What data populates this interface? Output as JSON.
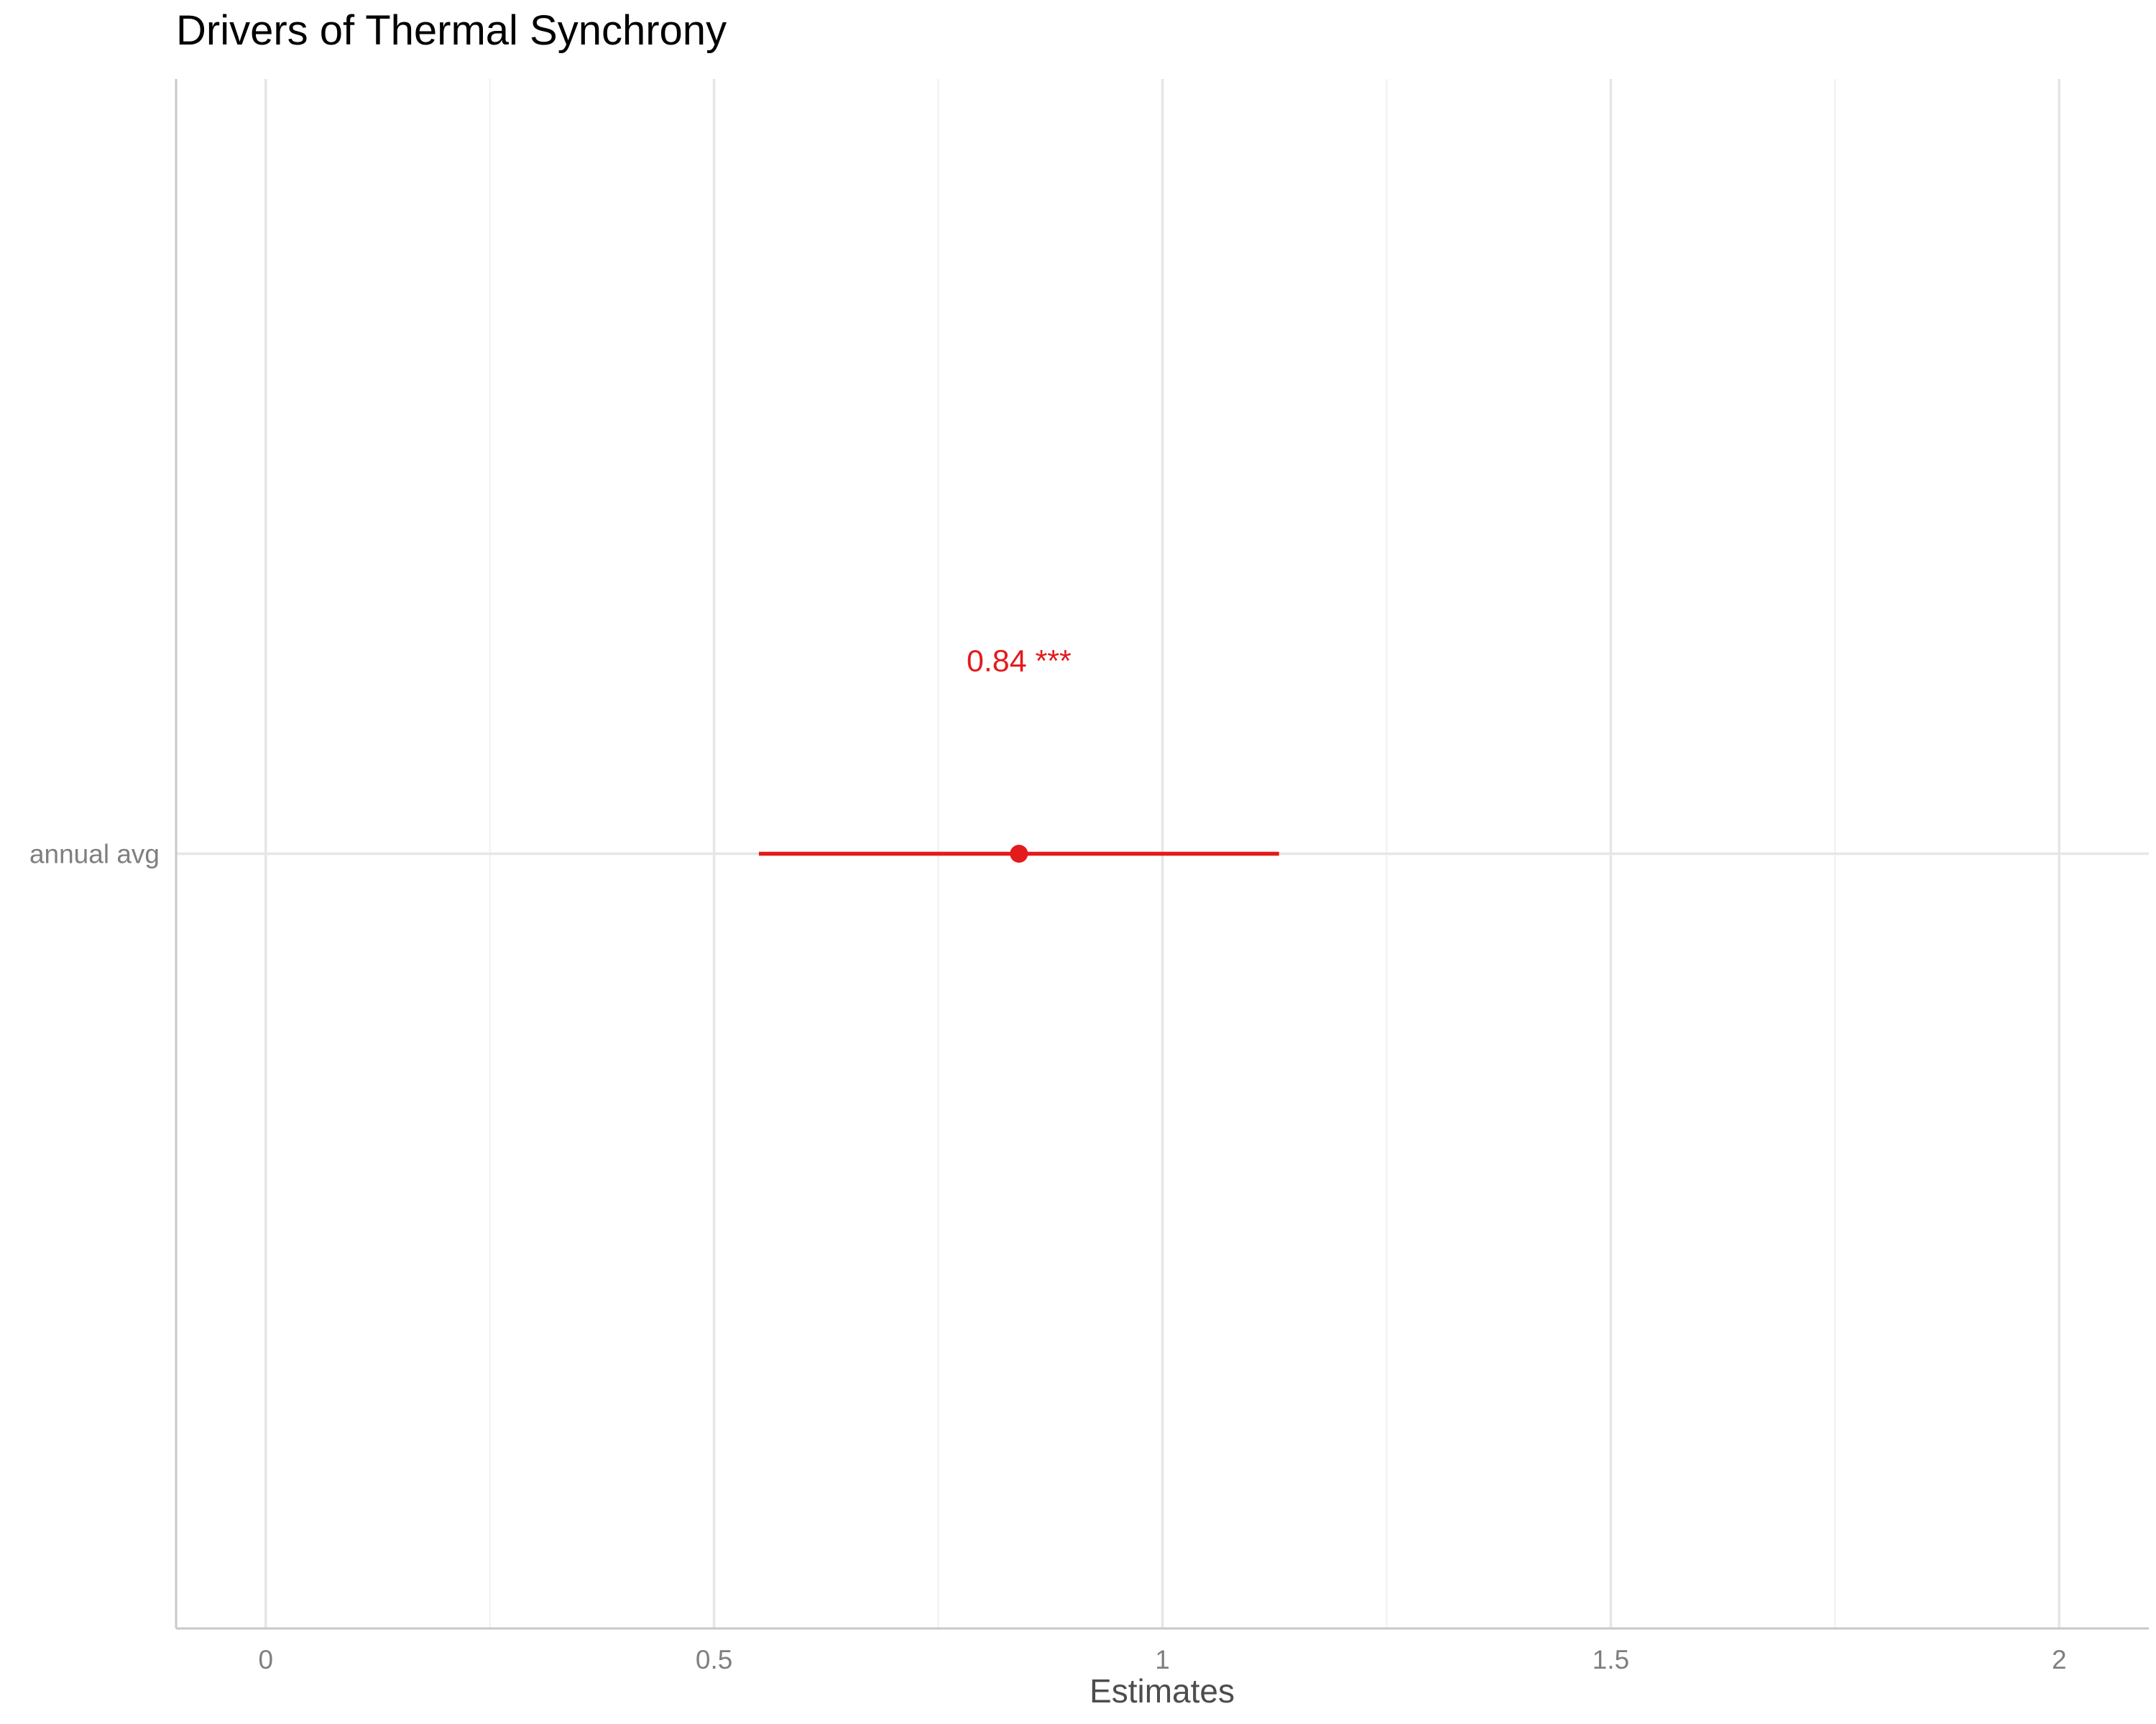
{
  "chart_data": {
    "type": "scatter",
    "subtype": "forest-plot",
    "title": "Drivers of Thermal Synchrony",
    "xlabel": "Estimates",
    "ylabel": "",
    "xlim": [
      -0.1,
      2.1
    ],
    "x_ticks": [
      0,
      0.5,
      1,
      1.5,
      2
    ],
    "x_tick_labels": [
      "0",
      "0.5",
      "1",
      "1.5",
      "2"
    ],
    "x_minor_gridlines": [
      0.25,
      0.75,
      1.25,
      1.75
    ],
    "grid": true,
    "legend": "none",
    "point_color": "#e41a1c",
    "terms": [
      {
        "label": "annual avg",
        "estimate": 0.84,
        "ci_low": 0.55,
        "ci_high": 1.13,
        "value_label": "0.84 ***"
      }
    ]
  }
}
